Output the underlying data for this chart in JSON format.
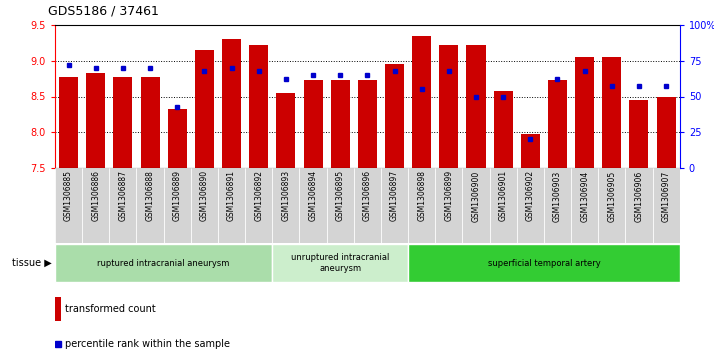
{
  "title": "GDS5186 / 37461",
  "samples": [
    "GSM1306885",
    "GSM1306886",
    "GSM1306887",
    "GSM1306888",
    "GSM1306889",
    "GSM1306890",
    "GSM1306891",
    "GSM1306892",
    "GSM1306893",
    "GSM1306894",
    "GSM1306895",
    "GSM1306896",
    "GSM1306897",
    "GSM1306898",
    "GSM1306899",
    "GSM1306900",
    "GSM1306901",
    "GSM1306902",
    "GSM1306903",
    "GSM1306904",
    "GSM1306905",
    "GSM1306906",
    "GSM1306907"
  ],
  "transformed_count": [
    8.77,
    8.83,
    8.77,
    8.77,
    8.33,
    9.15,
    9.3,
    9.22,
    8.55,
    8.73,
    8.73,
    8.73,
    8.95,
    9.35,
    9.22,
    9.22,
    8.58,
    7.97,
    8.73,
    9.05,
    9.05,
    8.45,
    8.5
  ],
  "percentile_rank": [
    72,
    70,
    70,
    70,
    43,
    68,
    70,
    68,
    62,
    65,
    65,
    65,
    68,
    55,
    68,
    50,
    50,
    20,
    62,
    68,
    57,
    57,
    57
  ],
  "ymin": 7.5,
  "ymax": 9.5,
  "yticks": [
    7.5,
    8.0,
    8.5,
    9.0,
    9.5
  ],
  "right_yticks_pct": [
    0,
    25,
    50,
    75,
    100
  ],
  "right_yticklabels": [
    "0",
    "25",
    "50",
    "75",
    "100%"
  ],
  "bar_color": "#cc0000",
  "dot_color": "#0000cc",
  "tissue_groups": [
    {
      "label": "ruptured intracranial aneurysm",
      "start": 0,
      "end": 8,
      "color": "#aaddaa"
    },
    {
      "label": "unruptured intracranial\naneurysm",
      "start": 8,
      "end": 13,
      "color": "#cceecc"
    },
    {
      "label": "superficial temporal artery",
      "start": 13,
      "end": 23,
      "color": "#33cc33"
    }
  ],
  "legend_bar_label": "transformed count",
  "legend_dot_label": "percentile rank within the sample",
  "xtick_bg": "#d0d0d0"
}
